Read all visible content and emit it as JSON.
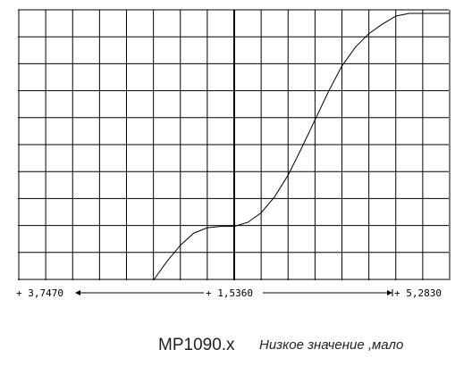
{
  "chart_data": {
    "type": "line",
    "title": "",
    "xlabel": "",
    "ylabel": "",
    "grid": true,
    "axis_readouts": {
      "left": "+ 3,7470",
      "center": "+ 1,5360",
      "right": "+ 5,2830"
    },
    "series": [
      {
        "values_in_grid_divisions": {
          "x": [
            -3.0,
            -2.5,
            -2.0,
            -1.5,
            -1.0,
            -0.5,
            0.0,
            0.5,
            1.0,
            1.5,
            2.0,
            2.5,
            3.0,
            3.5,
            4.0,
            4.5,
            5.0,
            5.5,
            6.0,
            6.5,
            7.0,
            7.5,
            8.0
          ],
          "y": [
            0.0,
            0.7,
            1.3,
            1.75,
            1.95,
            2.0,
            2.0,
            2.15,
            2.5,
            3.1,
            3.9,
            4.9,
            5.95,
            7.0,
            7.95,
            8.65,
            9.15,
            9.5,
            9.8,
            9.9,
            9.9,
            9.9,
            9.9
          ]
        }
      }
    ]
  },
  "captions": {
    "identifier": "MP1090.x",
    "note": "Низкое значение ,мало"
  }
}
